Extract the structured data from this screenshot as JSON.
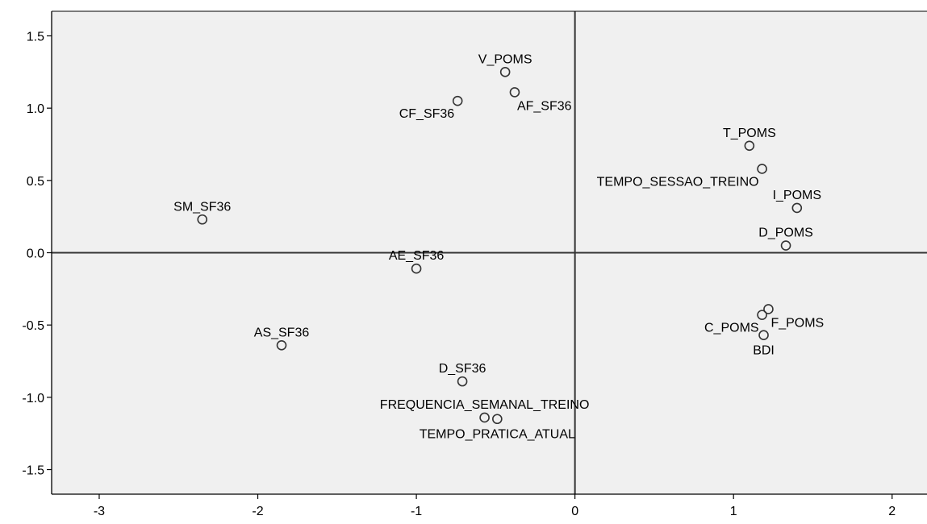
{
  "chart_data": {
    "type": "scatter",
    "xlim": [
      -3.3,
      2.22
    ],
    "ylim": [
      -1.67,
      1.67
    ],
    "xticks": [
      -3,
      -2,
      -1,
      0,
      1,
      2
    ],
    "yticks": [
      1.5,
      1.0,
      0.5,
      0.0,
      -0.5,
      -1.0,
      -1.5
    ],
    "xtick_labels": [
      "-3",
      "-2",
      "-1",
      "0",
      "1",
      "2"
    ],
    "ytick_labels": [
      "1.5",
      "1.0",
      "0.5",
      "0.0",
      "-0.5",
      "-1.0",
      "-1.5"
    ],
    "reference_lines": {
      "x": 0,
      "y": 0
    },
    "grid": false,
    "colors": {
      "plot_bg": "#f0f0f0",
      "marker": "#333333",
      "axis": "#000000"
    },
    "points": [
      {
        "label": "V_POMS",
        "x": -0.44,
        "y": 1.25,
        "label_pos": "above"
      },
      {
        "label": "AF_SF36",
        "x": -0.38,
        "y": 1.11,
        "label_pos": "below-right"
      },
      {
        "label": "CF_SF36",
        "x": -0.74,
        "y": 1.05,
        "label_pos": "below-left"
      },
      {
        "label": "T_POMS",
        "x": 1.1,
        "y": 0.74,
        "label_pos": "above"
      },
      {
        "label": "TEMPO_SESSAO_TREINO",
        "x": 1.18,
        "y": 0.58,
        "label_pos": "below-left"
      },
      {
        "label": "I_POMS",
        "x": 1.4,
        "y": 0.31,
        "label_pos": "above"
      },
      {
        "label": "SM_SF36",
        "x": -2.35,
        "y": 0.23,
        "label_pos": "above"
      },
      {
        "label": "D_POMS",
        "x": 1.33,
        "y": 0.05,
        "label_pos": "above"
      },
      {
        "label": "AE_SF36",
        "x": -1.0,
        "y": -0.11,
        "label_pos": "above"
      },
      {
        "label": "F_POMS",
        "x": 1.22,
        "y": -0.39,
        "label_pos": "below-right"
      },
      {
        "label": "C_POMS",
        "x": 1.18,
        "y": -0.43,
        "label_pos": "below-left"
      },
      {
        "label": "BDI",
        "x": 1.19,
        "y": -0.57,
        "label_pos": "below"
      },
      {
        "label": "AS_SF36",
        "x": -1.85,
        "y": -0.64,
        "label_pos": "above"
      },
      {
        "label": "D_SF36",
        "x": -0.71,
        "y": -0.89,
        "label_pos": "above"
      },
      {
        "label": "FREQUENCIA_SEMANAL_TREINO",
        "x": -0.57,
        "y": -1.14,
        "label_pos": "above"
      },
      {
        "label": "TEMPO_PRATICA_ATUAL",
        "x": -0.49,
        "y": -1.15,
        "label_pos": "below"
      }
    ]
  }
}
